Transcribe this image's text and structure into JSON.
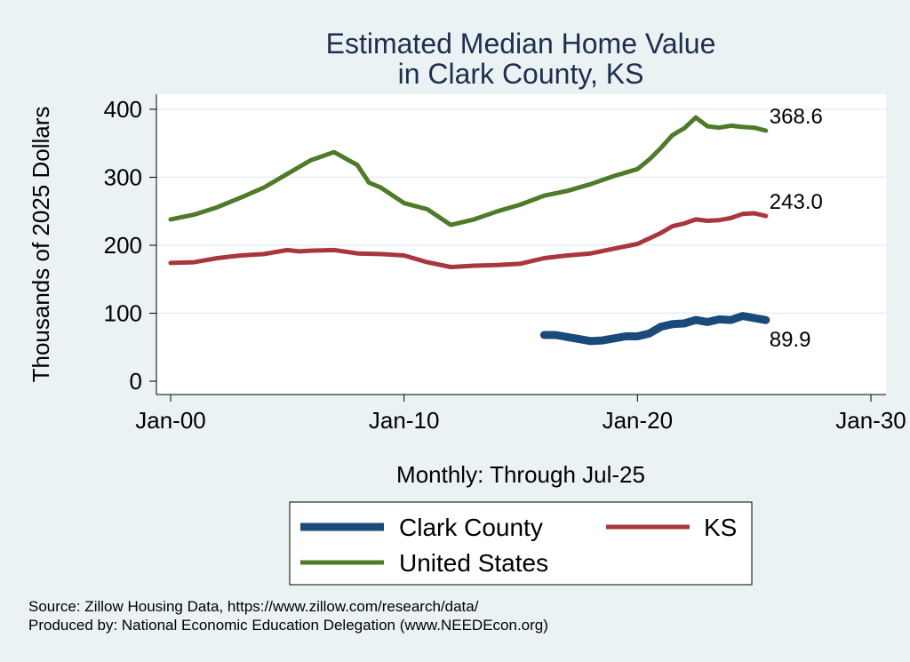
{
  "chart_data": {
    "type": "line",
    "title_line1": "Estimated Median Home Value",
    "title_line2": "in Clark County, KS",
    "ylabel": "Thousands of 2025 Dollars",
    "xlabel": "Monthly: Through Jul-25",
    "ylim": [
      0,
      400
    ],
    "xlim": [
      2000,
      2030
    ],
    "yticks": [
      0,
      100,
      200,
      300,
      400
    ],
    "xticks": [
      {
        "value": 2000,
        "label": "Jan-00"
      },
      {
        "value": 2010,
        "label": "Jan-10"
      },
      {
        "value": 2020,
        "label": "Jan-20"
      },
      {
        "value": 2030,
        "label": "Jan-30"
      }
    ],
    "grid": true,
    "legend_position": "bottom",
    "series": [
      {
        "name": "Clark County",
        "color": "#1a4a7a",
        "end_label": "89.9",
        "x": [
          2016.0,
          2016.5,
          2017.0,
          2017.5,
          2018.0,
          2018.5,
          2019.0,
          2019.5,
          2020.0,
          2020.5,
          2021.0,
          2021.5,
          2022.0,
          2022.5,
          2023.0,
          2023.5,
          2024.0,
          2024.5,
          2025.0,
          2025.5
        ],
        "values": [
          68,
          68,
          65,
          62,
          59,
          60,
          63,
          66,
          66,
          70,
          80,
          84,
          85,
          90,
          87,
          91,
          90,
          96,
          93,
          89.9
        ]
      },
      {
        "name": "KS",
        "color": "#a8363f",
        "end_label": "243.0",
        "x": [
          2000.0,
          2001.0,
          2002.0,
          2003.0,
          2004.0,
          2005.0,
          2005.5,
          2006.0,
          2007.0,
          2008.0,
          2009.0,
          2010.0,
          2011.0,
          2012.0,
          2013.0,
          2014.0,
          2015.0,
          2016.0,
          2017.0,
          2018.0,
          2019.0,
          2020.0,
          2020.5,
          2021.0,
          2021.5,
          2022.0,
          2022.5,
          2023.0,
          2023.5,
          2024.0,
          2024.5,
          2025.0,
          2025.5
        ],
        "values": [
          174,
          175,
          181,
          185,
          187,
          193,
          191,
          192,
          193,
          188,
          187,
          185,
          175,
          168,
          170,
          171,
          173,
          181,
          185,
          188,
          195,
          202,
          210,
          218,
          228,
          232,
          238,
          236,
          237,
          240,
          246,
          247,
          243
        ]
      },
      {
        "name": "United States",
        "color": "#4f7a28",
        "end_label": "368.6",
        "x": [
          2000.0,
          2001.0,
          2002.0,
          2003.0,
          2004.0,
          2005.0,
          2006.0,
          2007.0,
          2008.0,
          2008.5,
          2009.0,
          2010.0,
          2011.0,
          2012.0,
          2013.0,
          2014.0,
          2015.0,
          2016.0,
          2017.0,
          2018.0,
          2019.0,
          2020.0,
          2020.5,
          2021.0,
          2021.5,
          2022.0,
          2022.5,
          2023.0,
          2023.5,
          2024.0,
          2024.5,
          2025.0,
          2025.5
        ],
        "values": [
          238,
          245,
          256,
          270,
          285,
          305,
          325,
          337,
          318,
          292,
          285,
          262,
          253,
          230,
          238,
          250,
          260,
          273,
          280,
          290,
          302,
          312,
          326,
          343,
          362,
          372,
          388,
          375,
          373,
          376,
          374,
          373,
          368.6
        ]
      }
    ]
  },
  "source_line1": "Source: Zillow Housing Data, https://www.zillow.com/research/data/",
  "source_line2": "Produced by: National Economic Education Delegation (www.NEEDEcon.org)"
}
